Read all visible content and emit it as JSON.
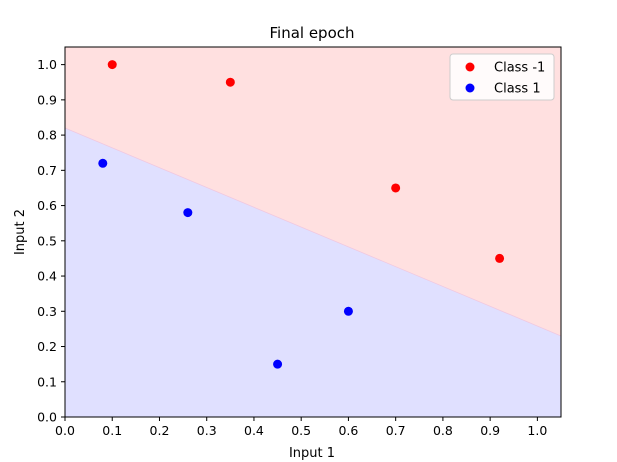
{
  "chart_data": {
    "type": "scatter",
    "title": "Final epoch",
    "xlabel": "Input 1",
    "ylabel": "Input 2",
    "xlim": [
      0.0,
      1.05
    ],
    "ylim": [
      0.0,
      1.05
    ],
    "xticks": [
      "0.0",
      "0.1",
      "0.2",
      "0.3",
      "0.4",
      "0.5",
      "0.6",
      "0.7",
      "0.8",
      "0.9",
      "1.0"
    ],
    "yticks": [
      "0.0",
      "0.1",
      "0.2",
      "0.3",
      "0.4",
      "0.5",
      "0.6",
      "0.7",
      "0.8",
      "0.9",
      "1.0"
    ],
    "grid": false,
    "legend_position": "top-right",
    "decision_boundary": {
      "points": [
        [
          0.0,
          0.82
        ],
        [
          1.05,
          0.23
        ]
      ]
    },
    "regions": [
      {
        "label": "Class -1",
        "side": "above",
        "color": "#ffe0e0"
      },
      {
        "label": "Class 1",
        "side": "below",
        "color": "#e0e0ff"
      }
    ],
    "series": [
      {
        "name": "Class -1",
        "color": "#ff0000",
        "points": [
          [
            0.1,
            1.0
          ],
          [
            0.35,
            0.95
          ],
          [
            0.7,
            0.65
          ],
          [
            0.92,
            0.45
          ]
        ]
      },
      {
        "name": "Class 1",
        "color": "#0000ff",
        "points": [
          [
            0.08,
            0.72
          ],
          [
            0.26,
            0.58
          ],
          [
            0.6,
            0.3
          ],
          [
            0.45,
            0.15
          ]
        ]
      }
    ]
  }
}
